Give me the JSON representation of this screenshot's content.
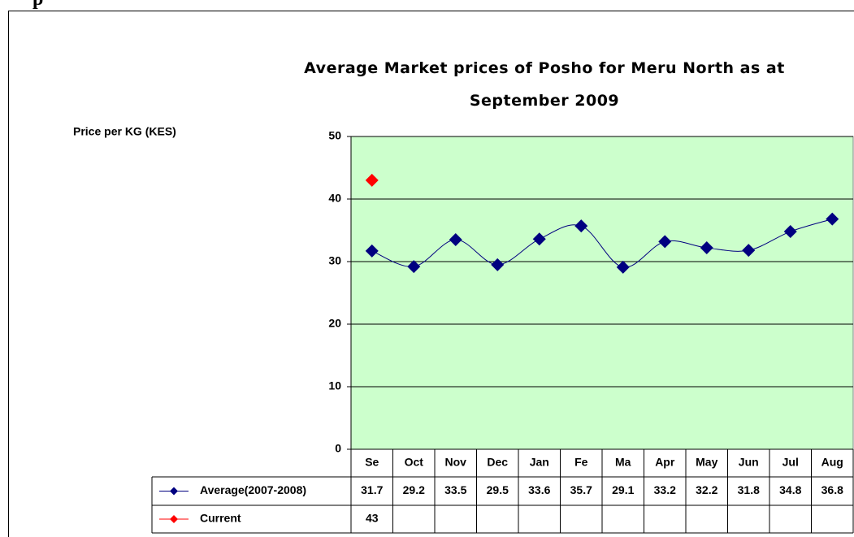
{
  "header_fragment": "p",
  "chart_data": {
    "type": "line",
    "title": "Average Market prices of Posho for Meru North as at September 2009",
    "y_label": "Price per KG (KES)",
    "categories": [
      "Se",
      "Oct",
      "Nov",
      "Dec",
      "Jan",
      "Fe",
      "Ma",
      "Apr",
      "May",
      "Jun",
      "Jul",
      "Aug"
    ],
    "series": [
      {
        "name": "Average(2007-2008)",
        "color": "#000080",
        "values": [
          31.7,
          29.2,
          33.5,
          29.5,
          33.6,
          35.7,
          29.1,
          33.2,
          32.2,
          31.8,
          34.8,
          36.8
        ]
      },
      {
        "name": "Current",
        "color": "#ff0000",
        "values": [
          43,
          null,
          null,
          null,
          null,
          null,
          null,
          null,
          null,
          null,
          null,
          null
        ]
      }
    ],
    "ylim": [
      0,
      50
    ],
    "yticks": [
      0,
      10,
      20,
      30,
      40,
      50
    ],
    "grid": true,
    "plot_background": "#ccffcc"
  }
}
